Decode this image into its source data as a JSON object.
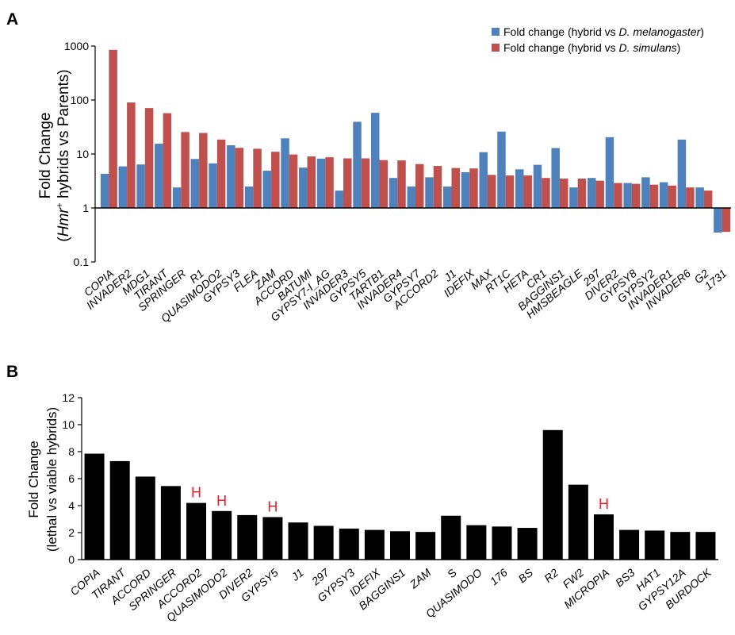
{
  "panel_labels": {
    "a": "A",
    "b": "B"
  },
  "colors": {
    "melanogaster": "#4f81bd",
    "simulans": "#c0504d",
    "bars_b": "#000000",
    "marker": "#e3202c"
  },
  "chart_data": [
    {
      "type": "bar",
      "panel": "A",
      "yscale": "log",
      "ylim": [
        0.1,
        1000
      ],
      "ylabel_line1": "Fold Change",
      "ylabel_line2_pre": "(",
      "ylabel_line2_italic": "Hmr",
      "ylabel_line2_sup": "+",
      "ylabel_line2_post": " hybrids vs Parents)",
      "yticks": [
        "0.1",
        "1",
        "10",
        "100",
        "1000"
      ],
      "legend_position": "top-right",
      "categories": [
        "COPIA",
        "INVADER2",
        "MDG1",
        "TIRANT",
        "SPRINGER",
        "R1",
        "QUASIMODO2",
        "GYPSY3",
        "FLEA",
        "ZAM",
        "ACCORD",
        "BATUMI",
        "GYPSY7-I_AG",
        "INVADER3",
        "GYPSY5",
        "TARTB1",
        "INVADER4",
        "GYPSY7",
        "ACCORD2",
        "J1",
        "IDEFIX",
        "MAX",
        "RT1C",
        "HETA",
        "CR1",
        "BAGGINS1",
        "HMSBEAGLE",
        "297",
        "DIVER2",
        "GYPSY8",
        "GYPSY2",
        "INVADER1",
        "INVADER6",
        "G2",
        "1731"
      ],
      "series": [
        {
          "legend_pre": "Fold change (hybrid vs ",
          "legend_italic": "D. melanogaster",
          "legend_post": ")",
          "values": [
            4.3,
            5.9,
            6.4,
            15.5,
            2.4,
            8.1,
            6.7,
            14.5,
            2.5,
            4.9,
            19.5,
            5.6,
            8.2,
            2.1,
            39.5,
            58,
            3.6,
            2.5,
            3.7,
            2.5,
            4.6,
            10.8,
            26,
            5.2,
            6.3,
            12.9,
            2.4,
            3.6,
            20.5,
            2.9,
            3.7,
            3.0,
            18.5,
            2.4,
            0.35
          ]
        },
        {
          "legend_pre": "Fold change (hybrid vs ",
          "legend_italic": "D. simulans",
          "legend_post": ")",
          "values": [
            850,
            90,
            71,
            57,
            25.5,
            24.5,
            18.5,
            13,
            12.5,
            11,
            9.8,
            9,
            8.7,
            8.3,
            8.3,
            7.7,
            7.6,
            6.5,
            6.0,
            5.5,
            5.4,
            4.1,
            4.0,
            4.0,
            3.6,
            3.5,
            3.5,
            3.2,
            2.9,
            2.8,
            2.7,
            2.6,
            2.4,
            2.1,
            0.36
          ]
        }
      ]
    },
    {
      "type": "bar",
      "panel": "B",
      "ylim": [
        0,
        12
      ],
      "yticks": [
        "0",
        "2",
        "4",
        "6",
        "8",
        "10",
        "12"
      ],
      "ylabel_line1": "Fold Change",
      "ylabel_line2": "(lethal vs viable hybrids)",
      "categories": [
        "COPIA",
        "TIRANT",
        "ACCORD",
        "SPRINGER",
        "ACCORD2",
        "QUASIMODO2",
        "DIVER2",
        "GYPSY5",
        "J1",
        "297",
        "GYPSY3",
        "IDEFIX",
        "BAGGINS1",
        "ZAM",
        "S",
        "QUASIMODO",
        "176",
        "BS",
        "R2",
        "FW2",
        "MICROPIA",
        "BS3",
        "HAT1",
        "GYPSY12A",
        "BURDOCK"
      ],
      "italic_categories": [
        "COPIA",
        "TIRANT",
        "ACCORD",
        "SPRINGER",
        "ACCORD2",
        "QUASIMODO2",
        "DIVER2",
        "GYPSY5",
        "J1",
        "297",
        "GYPSY3",
        "IDEFIX",
        "BAGGINS1",
        "ZAM",
        "QUASIMODO",
        "176",
        "BS",
        "R2",
        "FW2",
        "MICROPIA",
        "BS3",
        "HAT1",
        "GYPSY12A",
        "BURDOCK"
      ],
      "values": [
        7.85,
        7.3,
        6.15,
        5.45,
        4.2,
        3.6,
        3.3,
        3.15,
        2.75,
        2.5,
        2.3,
        2.2,
        2.1,
        2.05,
        3.25,
        2.55,
        2.45,
        2.35,
        9.6,
        5.55,
        3.35,
        2.2,
        2.15,
        2.05,
        2.05
      ],
      "annotations": [
        {
          "category": "ACCORD2",
          "text": "H"
        },
        {
          "category": "QUASIMODO2",
          "text": "H"
        },
        {
          "category": "GYPSY5",
          "text": "H"
        },
        {
          "category": "MICROPIA",
          "text": "H"
        }
      ]
    }
  ]
}
